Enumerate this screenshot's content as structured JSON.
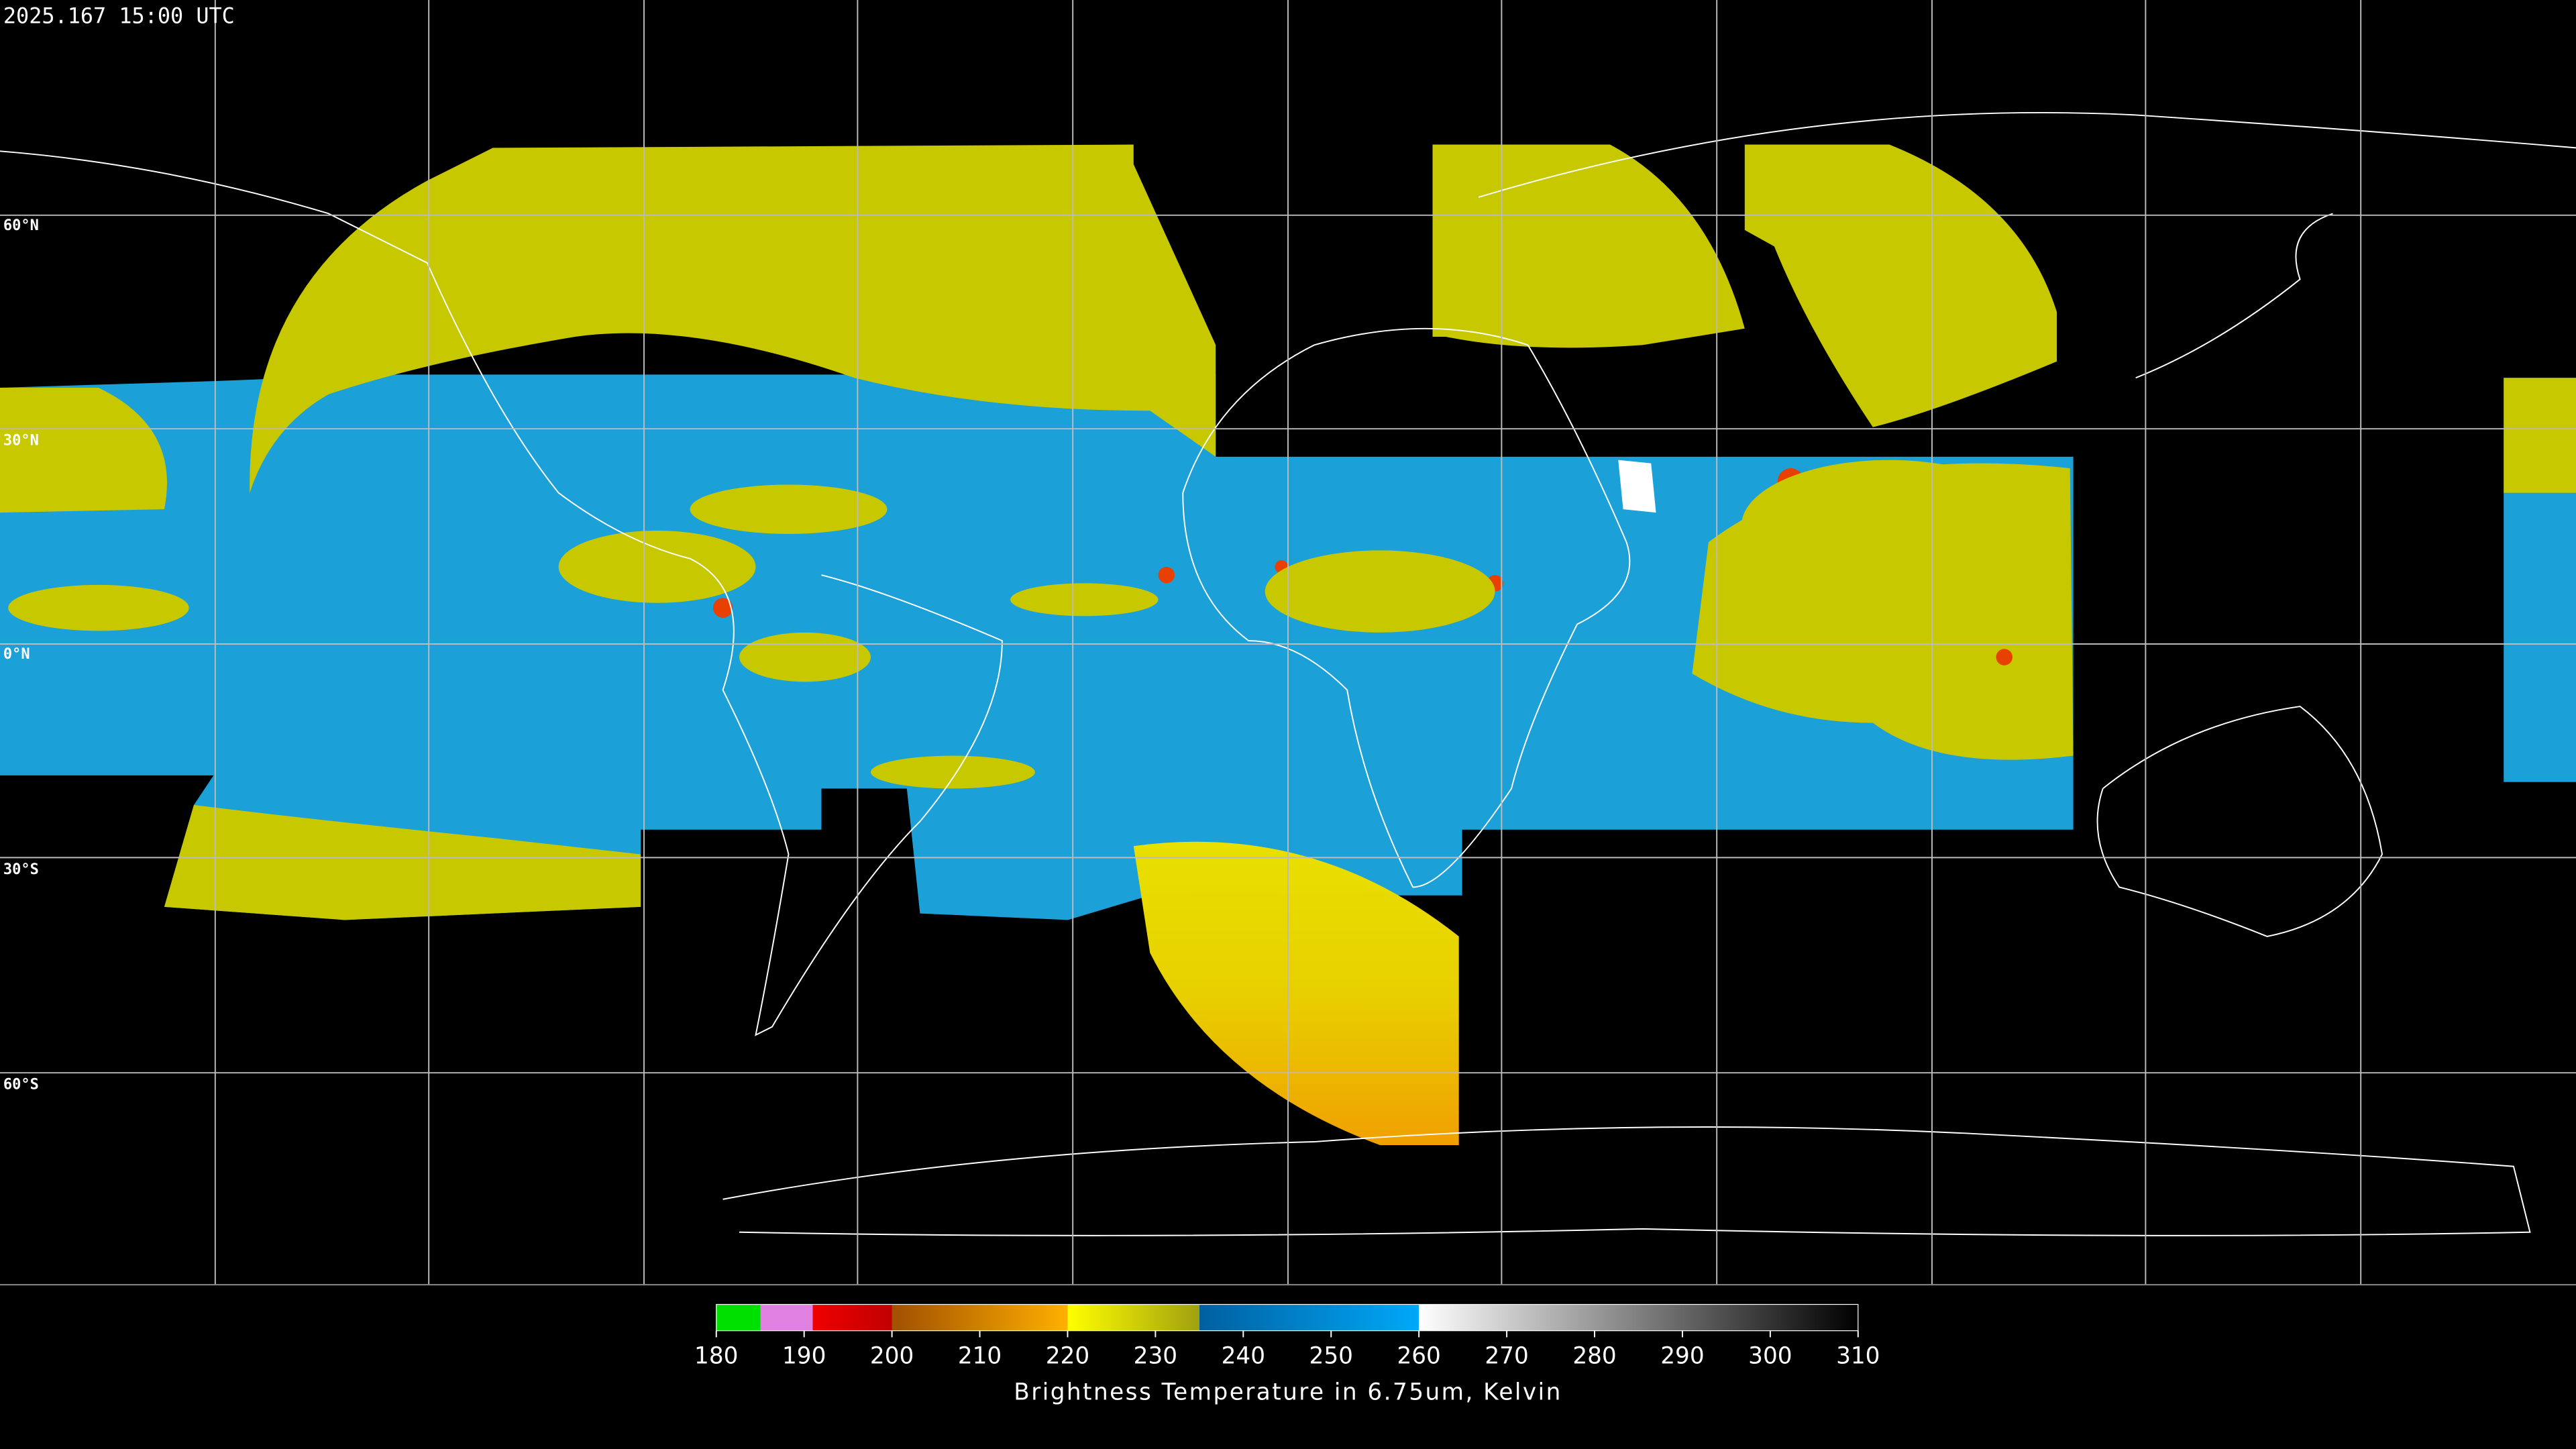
{
  "header": {
    "timestamp": "2025.167 15:00 UTC"
  },
  "map": {
    "lat_labels": [
      "60°N",
      "30°N",
      "0°N",
      "30°S",
      "60°S"
    ]
  },
  "colorbar": {
    "title": "Brightness Temperature in 6.75um, Kelvin",
    "ticks": [
      180,
      190,
      200,
      210,
      220,
      230,
      240,
      250,
      260,
      270,
      280,
      290,
      300,
      310
    ]
  }
}
